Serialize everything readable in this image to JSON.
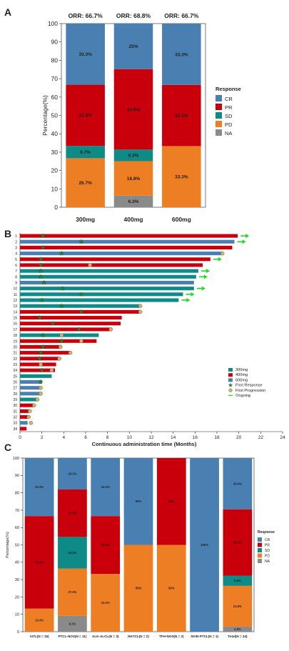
{
  "colors": {
    "CR": "#4A7FB1",
    "PR": "#C9000B",
    "SD": "#0E8A87",
    "PD": "#EE7E24",
    "NA": "#8A8A8A",
    "300mg": "#0E8A87",
    "400mg": "#C9000B",
    "600mg": "#4A7FB1",
    "first_response": "#2E7D32",
    "first_progression": "#C9B27A",
    "ongoing": "#18E018"
  },
  "chart_data": [
    {
      "panel": "A",
      "type": "bar",
      "stacked": true,
      "ylabel": "Percentage(%)",
      "ylim": [
        0,
        100
      ],
      "yticks": [
        0,
        10,
        20,
        30,
        40,
        50,
        60,
        70,
        80,
        90,
        100
      ],
      "categories": [
        "300mg",
        "400mg",
        "600mg"
      ],
      "orr_labels": [
        "ORR: 66.7%",
        "ORR: 68.8%",
        "ORR: 66.7%"
      ],
      "legend_title": "Response",
      "legend_position": "right",
      "series": [
        {
          "name": "NA",
          "values": [
            0,
            6.3,
            0
          ],
          "labels": [
            "",
            "6.3%",
            ""
          ]
        },
        {
          "name": "PD",
          "values": [
            26.7,
            18.8,
            33.3
          ],
          "labels": [
            "26.7%",
            "18.8%",
            "33.3%"
          ]
        },
        {
          "name": "SD",
          "values": [
            6.7,
            6.3,
            0
          ],
          "labels": [
            "6.7%",
            "6.3%",
            ""
          ]
        },
        {
          "name": "PR",
          "values": [
            33.3,
            43.8,
            33.3
          ],
          "labels": [
            "33.3%",
            "43.8%",
            "33.3%"
          ]
        },
        {
          "name": "CR",
          "values": [
            33.3,
            25,
            33.3
          ],
          "labels": [
            "33.3%",
            "25%",
            "33.3%"
          ]
        }
      ],
      "legend_order": [
        "CR",
        "PR",
        "SD",
        "PD",
        "NA"
      ]
    },
    {
      "panel": "B",
      "type": "bar",
      "orientation": "horizontal",
      "xlabel": "Continuous administration time (Months)",
      "xlim": [
        0,
        24
      ],
      "xticks": [
        0,
        2,
        4,
        6,
        8,
        10,
        12,
        14,
        16,
        18,
        20,
        22,
        24
      ],
      "legend_position": "right",
      "legend": [
        "300mg",
        "400mg",
        "600mg",
        "First Response",
        "First Progression",
        "Ongoing"
      ],
      "patients": [
        {
          "id": "1",
          "dose": "400mg",
          "months": 19.9,
          "response": 2.1,
          "ongoing": true
        },
        {
          "id": "2",
          "dose": "600mg",
          "months": 19.6,
          "response": 5.6,
          "ongoing": true
        },
        {
          "id": "3",
          "dose": "400mg",
          "months": 19.4,
          "response": 2.1
        },
        {
          "id": "4",
          "dose": "600mg",
          "months": 18.5,
          "response": 3.8,
          "progression": 18.5
        },
        {
          "id": "5",
          "dose": "400mg",
          "months": 17.4,
          "response": 1.9,
          "ongoing": true
        },
        {
          "id": "6",
          "dose": "400mg",
          "months": 16.7,
          "response": 1.9,
          "progression": 6.4
        },
        {
          "id": "7",
          "dose": "300mg",
          "months": 16.3,
          "response": 1.9,
          "ongoing": true
        },
        {
          "id": "8",
          "dose": "300mg",
          "months": 16.1,
          "response": 1.9,
          "ongoing": true
        },
        {
          "id": "9",
          "dose": "600mg",
          "months": 15.9,
          "response": 2.2
        },
        {
          "id": "10",
          "dose": "300mg",
          "months": 15.9,
          "response": 3.9,
          "ongoing": true
        },
        {
          "id": "11",
          "dose": "300mg",
          "months": 14.9,
          "response": 5.6,
          "ongoing": true
        },
        {
          "id": "12",
          "dose": "300mg",
          "months": 14.5,
          "response": 2.0,
          "ongoing": true
        },
        {
          "id": "13",
          "dose": "300mg",
          "months": 11.0,
          "response": 3.8,
          "progression": 11.0
        },
        {
          "id": "14",
          "dose": "400mg",
          "months": 11.0,
          "response": 5.6,
          "progression": 11.0
        },
        {
          "id": "15",
          "dose": "400mg",
          "months": 9.3,
          "response": 1.8
        },
        {
          "id": "16",
          "dose": "400mg",
          "months": 9.2,
          "response": 3.0
        },
        {
          "id": "17",
          "dose": "400mg",
          "months": 8.4,
          "response": 5.4,
          "progression": 8.3
        },
        {
          "id": "18",
          "dose": "300mg",
          "months": 7.2,
          "response": 2.1,
          "progression": 3.8
        },
        {
          "id": "19",
          "dose": "400mg",
          "months": 7.0,
          "response": 3.8,
          "progression": 5.6
        },
        {
          "id": "20",
          "dose": "400mg",
          "months": 3.8,
          "response": 2.1,
          "progression": 3.7
        },
        {
          "id": "21",
          "dose": "400mg",
          "months": 4.6,
          "response": 1.9,
          "progression": 4.6
        },
        {
          "id": "22",
          "dose": "400mg",
          "months": 3.6,
          "response": 1.8,
          "progression": 3.6
        },
        {
          "id": "23",
          "dose": "400mg",
          "months": 3.3,
          "progression": 1.9
        },
        {
          "id": "24",
          "dose": "400mg",
          "months": 3.2,
          "response": 2.0,
          "progression": 2.9
        },
        {
          "id": "25",
          "dose": "300mg",
          "months": 2.9
        },
        {
          "id": "26",
          "dose": "600mg",
          "months": 2.0,
          "response": 1.9
        },
        {
          "id": "27",
          "dose": "600mg",
          "months": 1.9,
          "progression": 1.9
        },
        {
          "id": "28",
          "dose": "600mg",
          "months": 1.9,
          "progression": 1.9
        },
        {
          "id": "29",
          "dose": "300mg",
          "months": 1.7,
          "progression": 1.6
        },
        {
          "id": "30",
          "dose": "400mg",
          "months": 1.2,
          "progression": 1.3
        },
        {
          "id": "31",
          "dose": "400mg",
          "months": 0.9,
          "progression": 0.9
        },
        {
          "id": "32",
          "dose": "400mg",
          "months": 0.8,
          "progression": 0.8
        },
        {
          "id": "33",
          "dose": "600mg",
          "months": 0.7,
          "progression": 1.0
        },
        {
          "id": "34",
          "dose": "400mg",
          "months": 0.6
        }
      ]
    },
    {
      "panel": "C",
      "type": "bar",
      "stacked": true,
      "ylabel": "Percentage(%)",
      "ylim": [
        0,
        100
      ],
      "yticks": [
        0,
        10,
        20,
        30,
        40,
        50,
        60,
        70,
        80,
        90,
        100
      ],
      "categories": [
        "AITL(N = 15)",
        "PTCL-NOS(N = 11)",
        "ALK-ALCL(N = 3)",
        "NKTCL(N = 2)",
        "TFH-NOS(N = 2)",
        "SKIN-PTCL(N = 1)",
        "Total(N = 34)"
      ],
      "legend_title": "Response",
      "legend_position": "right",
      "series": [
        {
          "name": "NA",
          "values": [
            0,
            9.1,
            0,
            0,
            0,
            0,
            2.9
          ],
          "labels": [
            "",
            "9.1%",
            "",
            "",
            "",
            "",
            "2.9%"
          ]
        },
        {
          "name": "PD",
          "values": [
            13.3,
            27.3,
            33.3,
            50,
            50,
            0,
            23.5
          ],
          "labels": [
            "13.3%",
            "27.3%",
            "33.3%",
            "50%",
            "50%",
            "",
            "23.5%"
          ]
        },
        {
          "name": "SD",
          "values": [
            0,
            18.2,
            0,
            0,
            0,
            0,
            5.9
          ],
          "labels": [
            "",
            "18.2%",
            "",
            "",
            "",
            "",
            "5.9%"
          ]
        },
        {
          "name": "PR",
          "values": [
            53.3,
            27.3,
            33.3,
            0,
            50,
            0,
            38.2
          ],
          "labels": [
            "53.3%",
            "27.3%",
            "33.3%",
            "",
            "50%",
            "",
            "38.2%"
          ]
        },
        {
          "name": "CR",
          "values": [
            33.3,
            18.2,
            33.3,
            50,
            0,
            100,
            29.4
          ],
          "labels": [
            "33.3%",
            "18.2%",
            "33.3%",
            "50%",
            "",
            "100%",
            "29.4%"
          ]
        }
      ],
      "legend_order": [
        "CR",
        "PR",
        "SD",
        "PD",
        "NA"
      ]
    }
  ],
  "panels": {
    "a": "A",
    "b": "B",
    "c": "C"
  }
}
